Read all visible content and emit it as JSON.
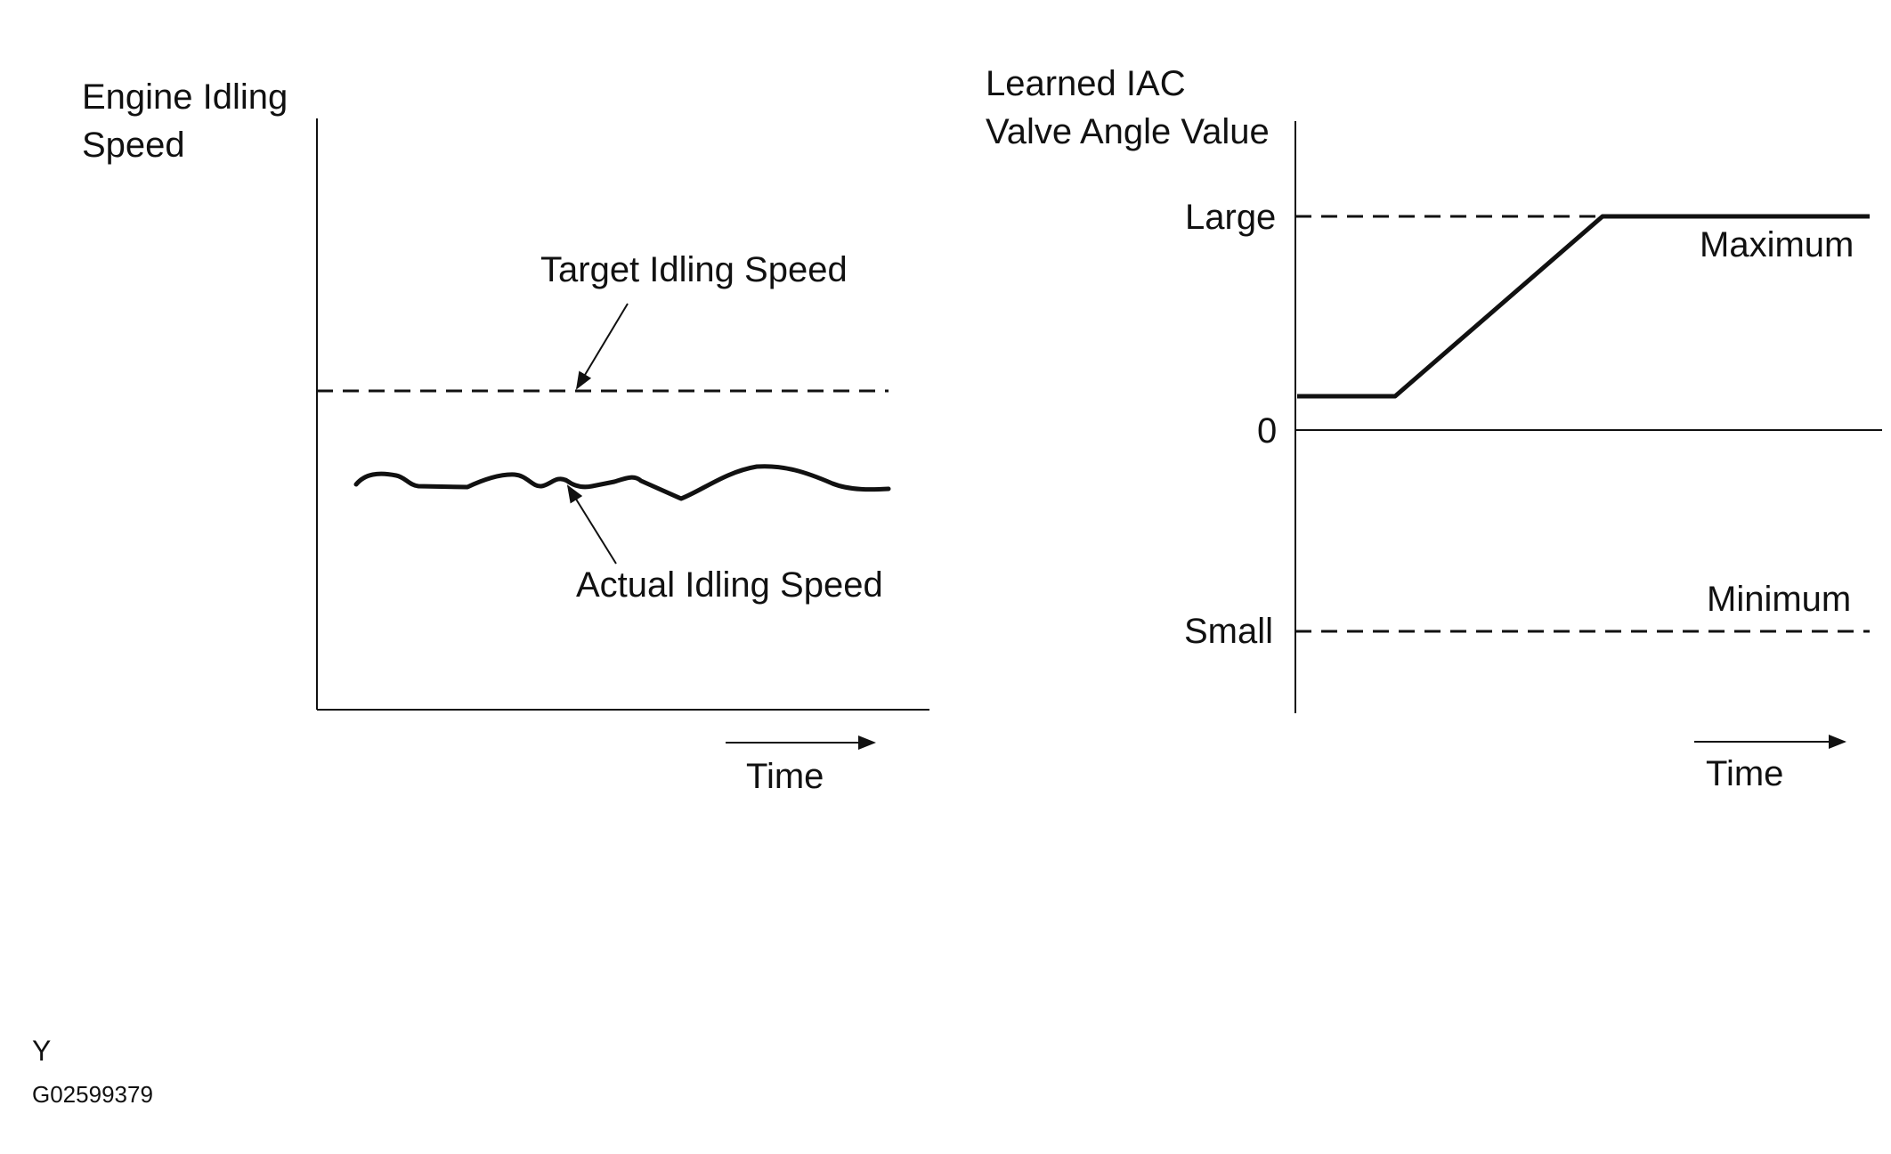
{
  "left_chart": {
    "y_axis_label_line1": "Engine Idling",
    "y_axis_label_line2": "Speed",
    "target_label": "Target Idling Speed",
    "actual_label": "Actual Idling Speed",
    "time_label": "Time"
  },
  "right_chart": {
    "y_axis_label_line1": "Learned IAC",
    "y_axis_label_line2": "Valve Angle Value",
    "tick_large": "Large",
    "tick_zero": "0",
    "tick_small": "Small",
    "maximum_label": "Maximum",
    "minimum_label": "Minimum",
    "time_label": "Time"
  },
  "footer": {
    "marker": "Y",
    "code": "G02599379"
  }
}
